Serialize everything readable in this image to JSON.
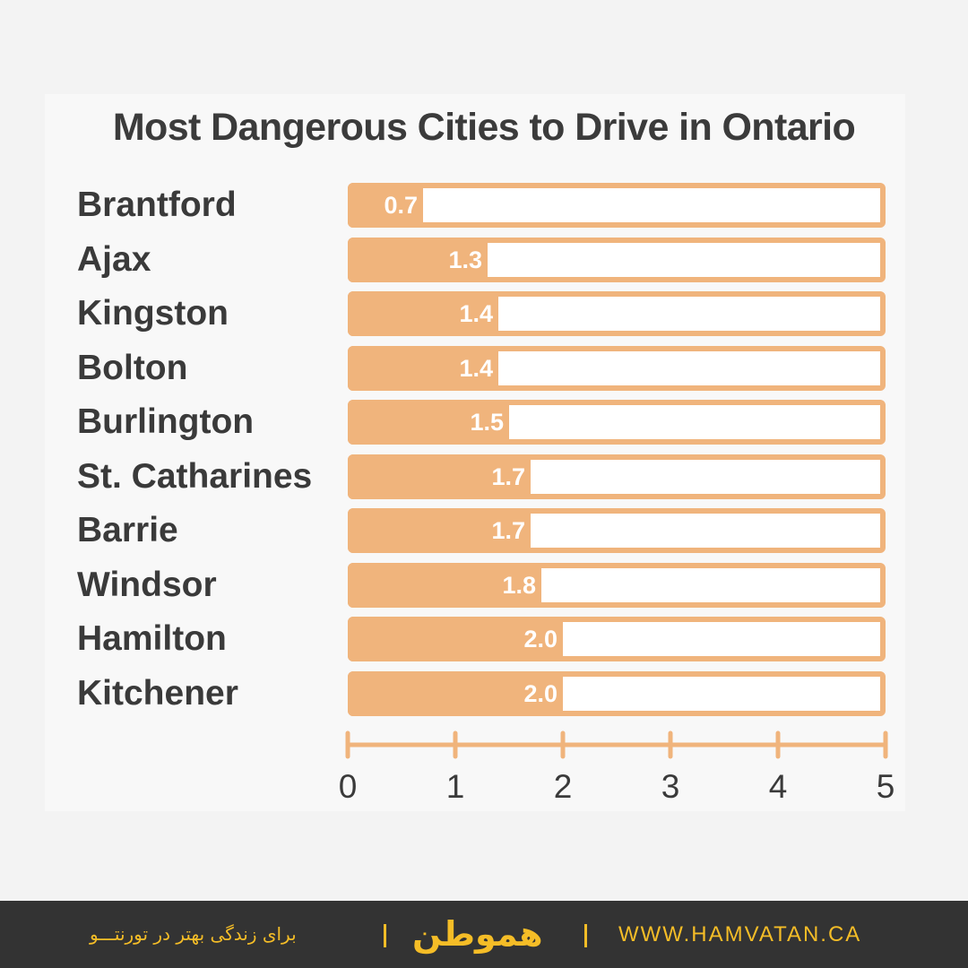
{
  "chart_data": {
    "type": "bar",
    "orientation": "horizontal",
    "title": "Most Dangerous Cities to Drive in Ontario",
    "categories": [
      "Brantford",
      "Ajax",
      "Kingston",
      "Bolton",
      "Burlington",
      "St. Catharines",
      "Barrie",
      "Windsor",
      "Hamilton",
      "Kitchener"
    ],
    "values": [
      0.7,
      1.3,
      1.4,
      1.4,
      1.5,
      1.7,
      1.7,
      1.8,
      2.0,
      2.0
    ],
    "value_labels": [
      "0.7",
      "1.3",
      "1.4",
      "1.4",
      "1.5",
      "1.7",
      "1.7",
      "1.8",
      "2.0",
      "2.0"
    ],
    "xlim": [
      0,
      5
    ],
    "x_ticks": [
      "0",
      "1",
      "2",
      "3",
      "4",
      "5"
    ],
    "grid": false,
    "colors": {
      "bar": "#f0b47c",
      "track": "#ffffff",
      "text": "#3a3a3a"
    }
  },
  "watermark": "هموطن",
  "footer": {
    "slogan": "برای زندگی بهتر در تورنتـــو",
    "brand": "هموطن",
    "url": "WWW.HAMVATAN.CA",
    "colors": {
      "background": "#333333",
      "accent": "#f5bd27"
    }
  }
}
